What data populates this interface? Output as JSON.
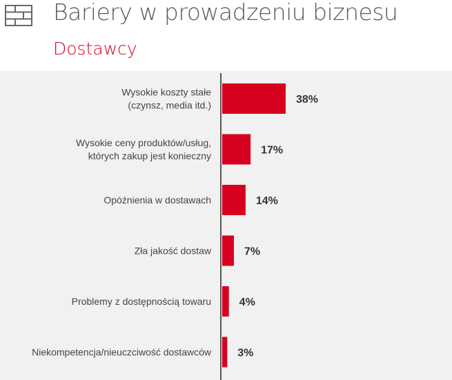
{
  "header": {
    "title": "Bariery w prowadzeniu biznesu",
    "subtitle": "Dostawcy",
    "icon": "brick-wall-icon"
  },
  "colors": {
    "bar": "#d7001e",
    "background": "#f1f1f1",
    "axis": "#555555",
    "subtitle": "#d7001e"
  },
  "chart_data": {
    "type": "bar",
    "orientation": "horizontal",
    "categories": [
      [
        "Wysokie koszty stałe",
        "(czynsz, media itd.)"
      ],
      [
        "Wysokie ceny produktów/usług,",
        "których zakup jest konieczny"
      ],
      [
        "Opóźnienia w dostawach"
      ],
      [
        "Zła jakość dostaw"
      ],
      [
        "Problemy z dostępnością towaru"
      ],
      [
        "Niekompetencja/nieuczciwość dostawców"
      ]
    ],
    "values": [
      38,
      17,
      14,
      7,
      4,
      3
    ],
    "value_labels": [
      "38%",
      "17%",
      "14%",
      "7%",
      "4%",
      "3%"
    ],
    "grid": false
  }
}
